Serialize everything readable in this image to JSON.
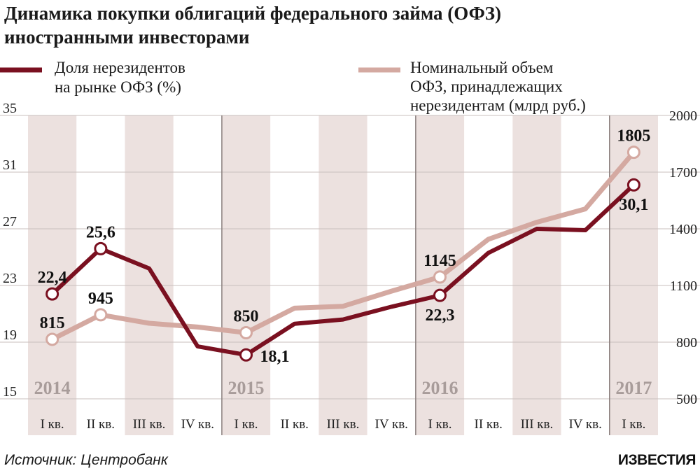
{
  "chart_data": {
    "type": "line",
    "title": [
      "Динамика покупки облигаций федерального займа (ОФЗ)",
      "иностранными инвесторами"
    ],
    "categories": [
      "I кв.",
      "II кв.",
      "III кв.",
      "IV кв.",
      "I кв.",
      "II кв.",
      "III кв.",
      "IV кв.",
      "I кв.",
      "II кв.",
      "III кв.",
      "IV кв.",
      "I кв."
    ],
    "years": [
      {
        "label": "2014",
        "start_index": 0
      },
      {
        "label": "2015",
        "start_index": 4
      },
      {
        "label": "2016",
        "start_index": 8
      },
      {
        "label": "2017",
        "start_index": 12
      }
    ],
    "y_left": {
      "ticks": [
        "35",
        "31",
        "27",
        "23",
        "19",
        "15"
      ],
      "ylim": [
        15,
        35
      ]
    },
    "y_right": {
      "ticks": [
        "2000",
        "1700",
        "1400",
        "1100",
        "800",
        "500"
      ],
      "ylim": [
        500,
        2000
      ]
    },
    "series": [
      {
        "name": [
          "Доля нерезидентов",
          "на рынке ОФЗ (%)"
        ],
        "axis": "left",
        "color": "#7a1020",
        "values": [
          22.4,
          25.6,
          24.2,
          18.7,
          18.1,
          20.3,
          20.6,
          21.5,
          22.3,
          25.3,
          27.0,
          26.9,
          30.1
        ],
        "labels": [
          {
            "index": 0,
            "text": "22,4",
            "pos": "above"
          },
          {
            "index": 1,
            "text": "25,6",
            "pos": "above"
          },
          {
            "index": 4,
            "text": "18,1",
            "pos": "right"
          },
          {
            "index": 8,
            "text": "22,3",
            "pos": "below"
          },
          {
            "index": 12,
            "text": "30,1",
            "pos": "below"
          }
        ]
      },
      {
        "name": [
          "Номинальный объем",
          "ОФЗ, принадлежащих",
          "нерезидентам (млрд руб.)"
        ],
        "axis": "right",
        "color": "#d4a9a1",
        "values": [
          815,
          945,
          900,
          880,
          850,
          980,
          990,
          1070,
          1145,
          1345,
          1435,
          1505,
          1805
        ],
        "labels": [
          {
            "index": 0,
            "text": "815",
            "pos": "above"
          },
          {
            "index": 1,
            "text": "945",
            "pos": "above"
          },
          {
            "index": 4,
            "text": "850",
            "pos": "above"
          },
          {
            "index": 8,
            "text": "1145",
            "pos": "above"
          },
          {
            "index": 12,
            "text": "1805",
            "pos": "above"
          }
        ]
      }
    ],
    "legend_placement": "top",
    "grid": true
  },
  "source": "Источник: Центробанк",
  "brand": "ИЗВЕСТИЯ"
}
